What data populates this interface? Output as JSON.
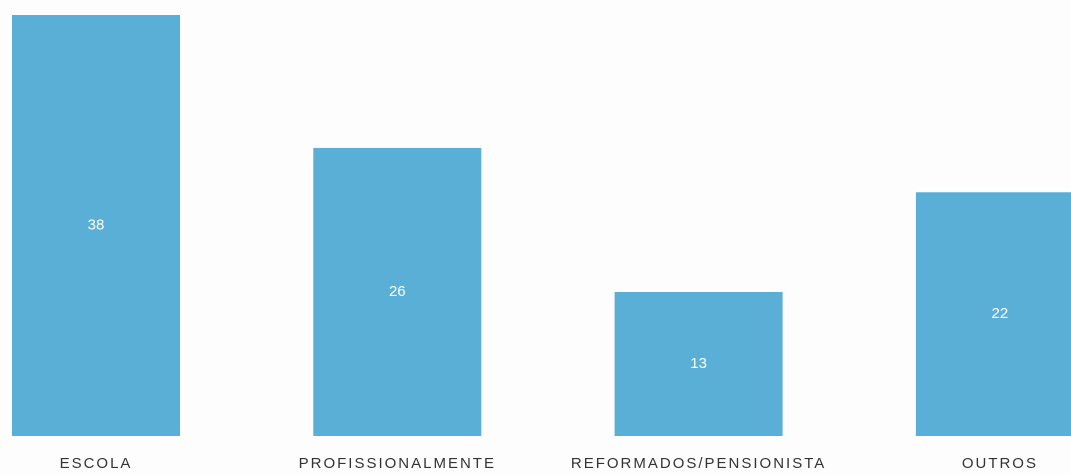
{
  "chart_data": {
    "type": "bar",
    "categories": [
      "ESCOLA",
      "PROFISSIONALMENTE",
      "REFORMADOS/PENSIONISTA",
      "OUTROS"
    ],
    "values": [
      38,
      26,
      13,
      22
    ],
    "color": "#5aafd6"
  }
}
